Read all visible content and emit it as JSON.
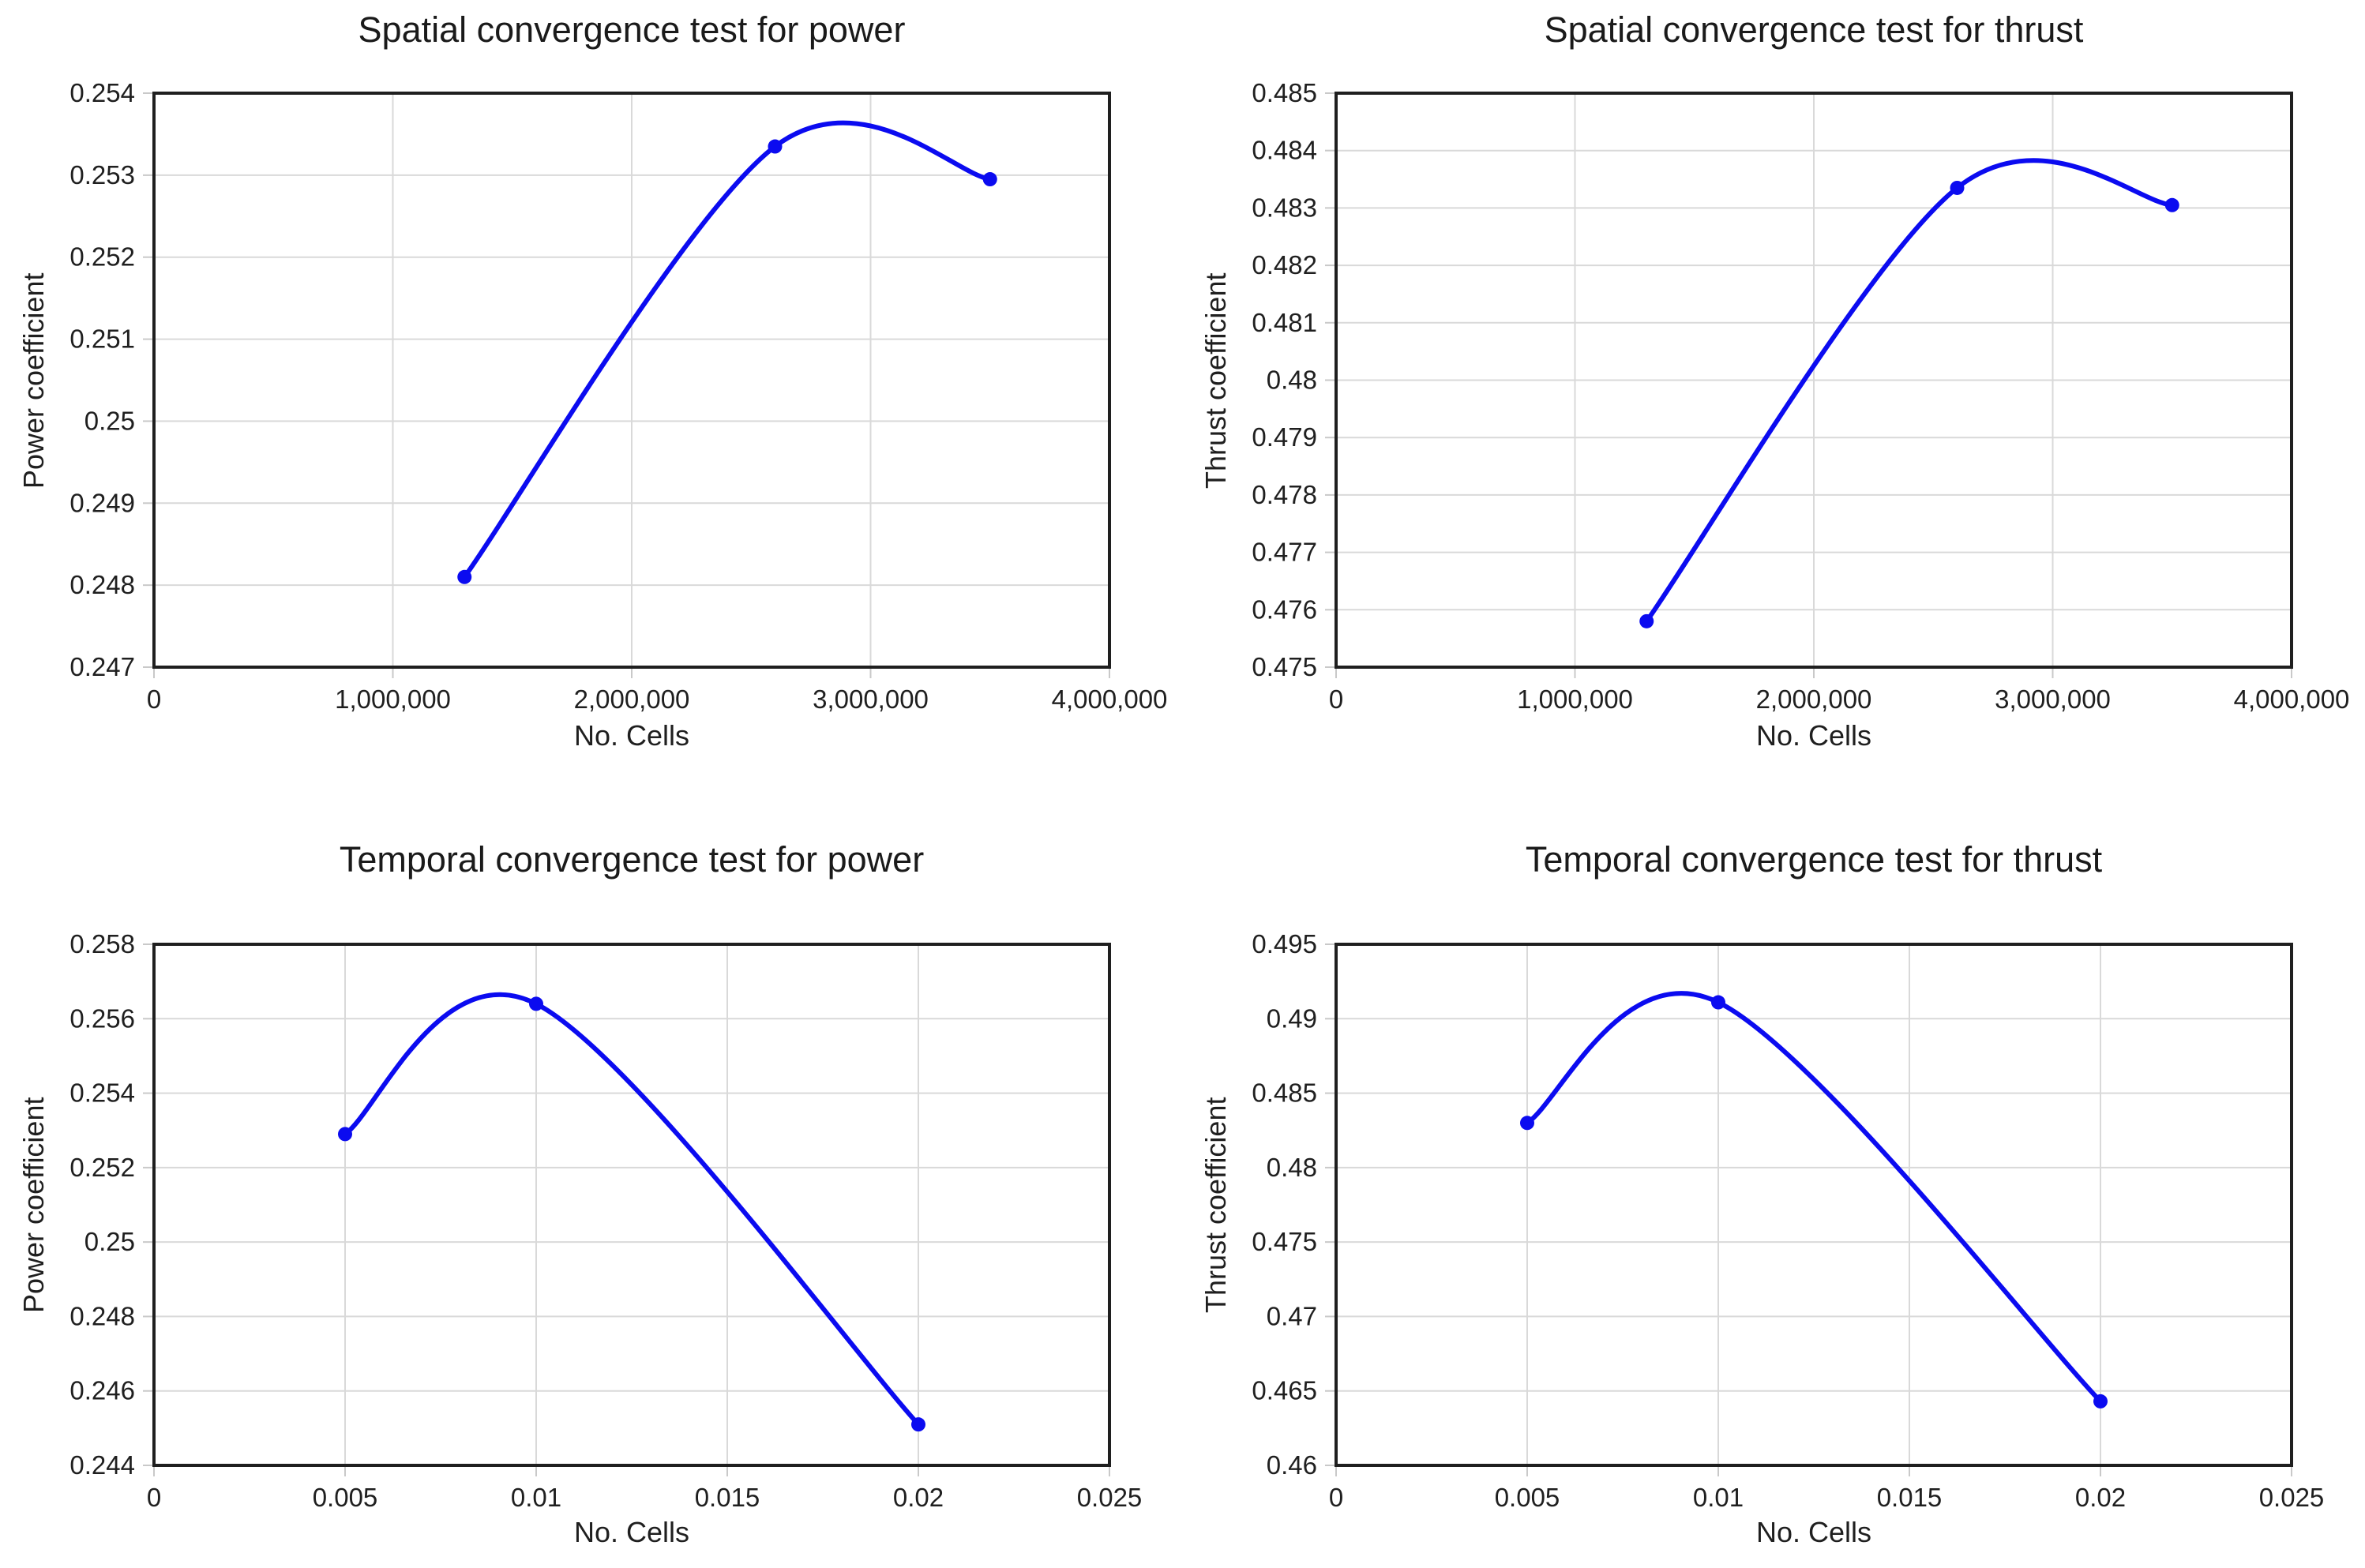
{
  "page": {
    "background": "#ffffff"
  },
  "styles": {
    "line_color": "#0b0bf0",
    "marker_color": "#0b0bf0",
    "grid_color": "#d9d9d9",
    "tick_mark_color": "#c9c9c9",
    "axis_border_color": "#1f1f1f",
    "text_color": "#1f1f1f",
    "title_color": "#1a1a1a"
  },
  "chart_data": [
    {
      "type": "line",
      "id": "spatial-power",
      "title": "Spatial convergence test for power",
      "xlabel": "No. Cells",
      "ylabel": "Power coefficient",
      "xlim": [
        0,
        4000000
      ],
      "ylim": [
        0.247,
        0.254
      ],
      "x_ticks": [
        0,
        1000000,
        2000000,
        3000000,
        4000000
      ],
      "x_tick_labels": [
        "0",
        "1,000,000",
        "2,000,000",
        "3,000,000",
        "4,000,000"
      ],
      "y_ticks": [
        0.247,
        0.248,
        0.249,
        0.25,
        0.251,
        0.252,
        0.253,
        0.254
      ],
      "y_tick_labels": [
        "0.247",
        "0.248",
        "0.249",
        "0.25",
        "0.251",
        "0.252",
        "0.253",
        "0.254"
      ],
      "x": [
        1300000,
        2600000,
        3500000
      ],
      "y": [
        0.2481,
        0.25335,
        0.25295
      ],
      "grid": true,
      "legend": "none",
      "line_smooth": true
    },
    {
      "type": "line",
      "id": "spatial-thrust",
      "title": "Spatial convergence test for thrust",
      "xlabel": "No. Cells",
      "ylabel": "Thrust coefficient",
      "xlim": [
        0,
        4000000
      ],
      "ylim": [
        0.475,
        0.485
      ],
      "x_ticks": [
        0,
        1000000,
        2000000,
        3000000,
        4000000
      ],
      "x_tick_labels": [
        "0",
        "1,000,000",
        "2,000,000",
        "3,000,000",
        "4,000,000"
      ],
      "y_ticks": [
        0.475,
        0.476,
        0.477,
        0.478,
        0.479,
        0.48,
        0.481,
        0.482,
        0.483,
        0.484,
        0.485
      ],
      "y_tick_labels": [
        "0.475",
        "0.476",
        "0.477",
        "0.478",
        "0.479",
        "0.48",
        "0.481",
        "0.482",
        "0.483",
        "0.484",
        "0.485"
      ],
      "x": [
        1300000,
        2600000,
        3500000
      ],
      "y": [
        0.4758,
        0.48335,
        0.48305
      ],
      "grid": true,
      "legend": "none",
      "line_smooth": true
    },
    {
      "type": "line",
      "id": "temporal-power",
      "title": "Temporal convergence test for power",
      "xlabel": "No. Cells",
      "ylabel": "Power coefficient",
      "xlim": [
        0,
        0.025
      ],
      "ylim": [
        0.244,
        0.258
      ],
      "x_ticks": [
        0,
        0.005,
        0.01,
        0.015,
        0.02,
        0.025
      ],
      "x_tick_labels": [
        "0",
        "0.005",
        "0.01",
        "0.015",
        "0.02",
        "0.025"
      ],
      "y_ticks": [
        0.244,
        0.246,
        0.248,
        0.25,
        0.252,
        0.254,
        0.256,
        0.258
      ],
      "y_tick_labels": [
        "0.244",
        "0.246",
        "0.248",
        "0.25",
        "0.252",
        "0.254",
        "0.256",
        "0.258"
      ],
      "x": [
        0.005,
        0.01,
        0.02
      ],
      "y": [
        0.2529,
        0.2564,
        0.2451
      ],
      "grid": true,
      "legend": "none",
      "line_smooth": true
    },
    {
      "type": "line",
      "id": "temporal-thrust",
      "title": "Temporal convergence test for thrust",
      "xlabel": "No. Cells",
      "ylabel": "Thrust coefficient",
      "xlim": [
        0,
        0.025
      ],
      "ylim": [
        0.46,
        0.495
      ],
      "x_ticks": [
        0,
        0.005,
        0.01,
        0.015,
        0.02,
        0.025
      ],
      "x_tick_labels": [
        "0",
        "0.005",
        "0.01",
        "0.015",
        "0.02",
        "0.025"
      ],
      "y_ticks": [
        0.46,
        0.465,
        0.47,
        0.475,
        0.48,
        0.485,
        0.49,
        0.495
      ],
      "y_tick_labels": [
        "0.46",
        "0.465",
        "0.47",
        "0.475",
        "0.48",
        "0.485",
        "0.49",
        "0.495"
      ],
      "x": [
        0.005,
        0.01,
        0.02
      ],
      "y": [
        0.483,
        0.4911,
        0.4643
      ],
      "grid": true,
      "legend": "none",
      "line_smooth": true
    }
  ]
}
